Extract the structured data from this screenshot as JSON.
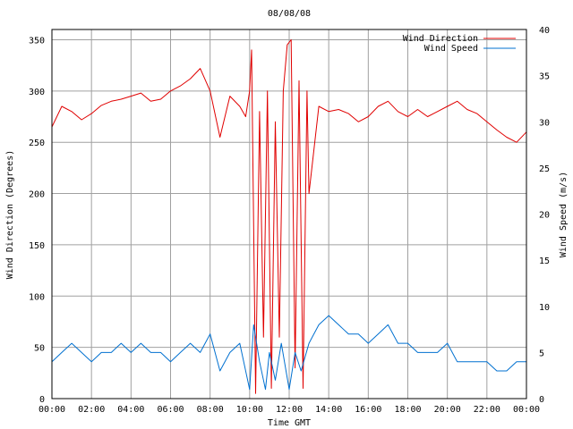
{
  "chart_data": {
    "type": "line",
    "title": "08/08/08",
    "xlabel": "Time GMT",
    "ylabel_left": "Wind Direction (Degrees)",
    "ylabel_right": "Wind Speed (m/s)",
    "x_ticks": [
      "00:00",
      "02:00",
      "04:00",
      "06:00",
      "08:00",
      "10:00",
      "12:00",
      "14:00",
      "16:00",
      "18:00",
      "20:00",
      "22:00",
      "00:00"
    ],
    "x_range_hours": [
      0,
      24
    ],
    "y_left_range": [
      0,
      360
    ],
    "y_left_ticks": [
      "0",
      "50",
      "100",
      "150",
      "200",
      "250",
      "300",
      "350"
    ],
    "y_right_range": [
      0,
      40
    ],
    "y_right_ticks": [
      "0",
      "5",
      "10",
      "15",
      "20",
      "25",
      "30",
      "35",
      "40"
    ],
    "grid": true,
    "legend_position": "top-right",
    "legend": [
      "Wind Direction",
      "Wind Speed"
    ],
    "colors": {
      "direction": "#e00000",
      "speed": "#0070d0",
      "grid": "#a0a0a0"
    },
    "series": [
      {
        "name": "Wind Direction",
        "axis": "left",
        "x": [
          0,
          0.5,
          1,
          1.5,
          2,
          2.5,
          3,
          3.5,
          4,
          4.5,
          5,
          5.5,
          6,
          6.5,
          7,
          7.5,
          8,
          8.5,
          9,
          9.5,
          9.8,
          10,
          10.1,
          10.3,
          10.5,
          10.7,
          10.9,
          11.1,
          11.3,
          11.5,
          11.7,
          11.9,
          12.1,
          12.3,
          12.5,
          12.7,
          12.9,
          13,
          13.5,
          14,
          14.5,
          15,
          15.5,
          16,
          16.5,
          17,
          17.5,
          18,
          18.5,
          19,
          19.5,
          20,
          20.5,
          21,
          21.5,
          22,
          22.5,
          23,
          23.5,
          24
        ],
        "values": [
          265,
          285,
          280,
          272,
          278,
          286,
          290,
          292,
          295,
          298,
          290,
          292,
          300,
          305,
          312,
          322,
          300,
          255,
          295,
          285,
          275,
          300,
          340,
          5,
          280,
          60,
          300,
          10,
          270,
          60,
          300,
          345,
          350,
          30,
          310,
          10,
          300,
          200,
          285,
          280,
          282,
          278,
          270,
          275,
          285,
          290,
          280,
          275,
          282,
          275,
          280,
          285,
          290,
          282,
          278,
          270,
          262,
          255,
          250,
          260
        ]
      },
      {
        "name": "Wind Speed",
        "axis": "right",
        "x": [
          0,
          0.5,
          1,
          1.5,
          2,
          2.5,
          3,
          3.5,
          4,
          4.5,
          5,
          5.5,
          6,
          6.5,
          7,
          7.5,
          8,
          8.5,
          9,
          9.5,
          10,
          10.2,
          10.5,
          10.8,
          11,
          11.3,
          11.6,
          12,
          12.3,
          12.6,
          13,
          13.5,
          14,
          14.5,
          15,
          15.5,
          16,
          16.5,
          17,
          17.5,
          18,
          18.5,
          19,
          19.5,
          20,
          20.5,
          21,
          21.5,
          22,
          22.5,
          23,
          23.5,
          24
        ],
        "values": [
          4,
          5,
          6,
          5,
          4,
          5,
          5,
          6,
          5,
          6,
          5,
          5,
          4,
          5,
          6,
          5,
          7,
          3,
          5,
          6,
          1,
          8,
          4,
          1,
          5,
          2,
          6,
          1,
          5,
          3,
          6,
          8,
          9,
          8,
          7,
          7,
          6,
          7,
          8,
          6,
          6,
          5,
          5,
          5,
          6,
          4,
          4,
          4,
          4,
          3,
          3,
          4,
          4
        ]
      }
    ]
  }
}
